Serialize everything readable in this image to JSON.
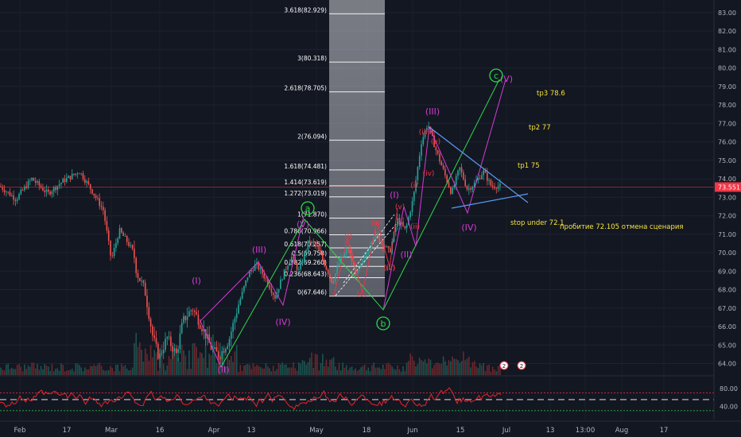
{
  "chart_data": {
    "type": "candlestick",
    "price_axis": {
      "range": [
        63.5,
        83.5
      ],
      "ticks": [
        "64.00",
        "65.00",
        "66.00",
        "67.00",
        "68.00",
        "69.00",
        "70.00",
        "71.00",
        "72.00",
        "73.00",
        "74.00",
        "75.00",
        "76.00",
        "77.00",
        "78.00",
        "79.00",
        "80.00",
        "81.00",
        "82.00",
        "83.00"
      ],
      "last_price": "73.551",
      "last_price_value": 73.551
    },
    "oscillator_axis": {
      "ticks": [
        "80.00",
        "40.00"
      ],
      "tick_values": [
        80,
        40
      ],
      "range": [
        10,
        105
      ],
      "overbought": 70,
      "oversold": 30
    },
    "date_axis": [
      "Feb",
      "17",
      "Mar",
      "16",
      "Apr",
      "13",
      "May",
      "18",
      "Jun",
      "15",
      "Jul",
      "13",
      "13:00",
      "Aug",
      "17"
    ],
    "fibonacci": [
      {
        "label": "0(67.646)",
        "value": 67.646
      },
      {
        "label": "0.236(68.643)",
        "value": 68.643
      },
      {
        "label": "0.382(69.260)",
        "value": 69.26
      },
      {
        "label": "0.5(69.758)",
        "value": 69.758
      },
      {
        "label": "0.618(70.257)",
        "value": 70.257
      },
      {
        "label": "0.786(70.966)",
        "value": 70.966
      },
      {
        "label": "1(71.870)",
        "value": 71.87
      },
      {
        "label": "1.272(73.019)",
        "value": 73.019
      },
      {
        "label": "1.414(73.619)",
        "value": 73.619
      },
      {
        "label": "1.618(74.481)",
        "value": 74.481
      },
      {
        "label": "2(76.094)",
        "value": 76.094
      },
      {
        "label": "2.618(78.705)",
        "value": 78.705
      },
      {
        "label": "3(80.318)",
        "value": 80.318
      },
      {
        "label": "3.618(82.929)",
        "value": 82.929
      }
    ],
    "targets": [
      {
        "label": "tp3 78.6",
        "value": 78.6
      },
      {
        "label": "tp2 77",
        "value": 77.0
      },
      {
        "label": "tp1 75",
        "value": 75.0
      }
    ],
    "notes": [
      {
        "label": "stop under 72.1",
        "value": 72.1
      },
      {
        "label": "пробитие 72.105 отмена сценария",
        "value": 72.105
      }
    ],
    "wave_labels": [
      {
        "text": "(I)",
        "color": "magenta"
      },
      {
        "text": "(II)",
        "color": "magenta"
      },
      {
        "text": "(III)",
        "color": "magenta"
      },
      {
        "text": "(IV)",
        "color": "magenta"
      },
      {
        "text": "(V)",
        "color": "magenta"
      },
      {
        "text": "(I)",
        "color": "magenta"
      },
      {
        "text": "(II)",
        "color": "magenta"
      },
      {
        "text": "(III)",
        "color": "magenta"
      },
      {
        "text": "(IV)",
        "color": "magenta"
      },
      {
        "text": "(V)",
        "color": "magenta"
      },
      {
        "text": "(i)",
        "color": "red"
      },
      {
        "text": "(ii)",
        "color": "red"
      },
      {
        "text": "(iii)",
        "color": "red"
      },
      {
        "text": "(iv)",
        "color": "red"
      },
      {
        "text": "(v)",
        "color": "red"
      },
      {
        "text": "(i)",
        "color": "red"
      },
      {
        "text": "(ii)",
        "color": "red"
      },
      {
        "text": "(iii)",
        "color": "red"
      },
      {
        "text": "(iv)",
        "color": "red"
      },
      {
        "text": "(v)",
        "color": "red"
      },
      {
        "text": "(v)",
        "color": "red"
      }
    ],
    "corrective_labels": [
      "a",
      "b",
      "c"
    ],
    "event_badges": [
      "2",
      "2"
    ],
    "colors": {
      "background": "#131722",
      "up_candle": "#26a69a",
      "down_candle": "#ef5350",
      "fib_zone": "#787b86",
      "price_marker": "#f23645",
      "wave_magenta": "#d63ad6",
      "wave_red": "#f23645",
      "abc_green": "#2fd84a",
      "triangle": "#5b9cf6",
      "annotation": "#f5e43b",
      "oscillator": "#e8252b"
    }
  }
}
